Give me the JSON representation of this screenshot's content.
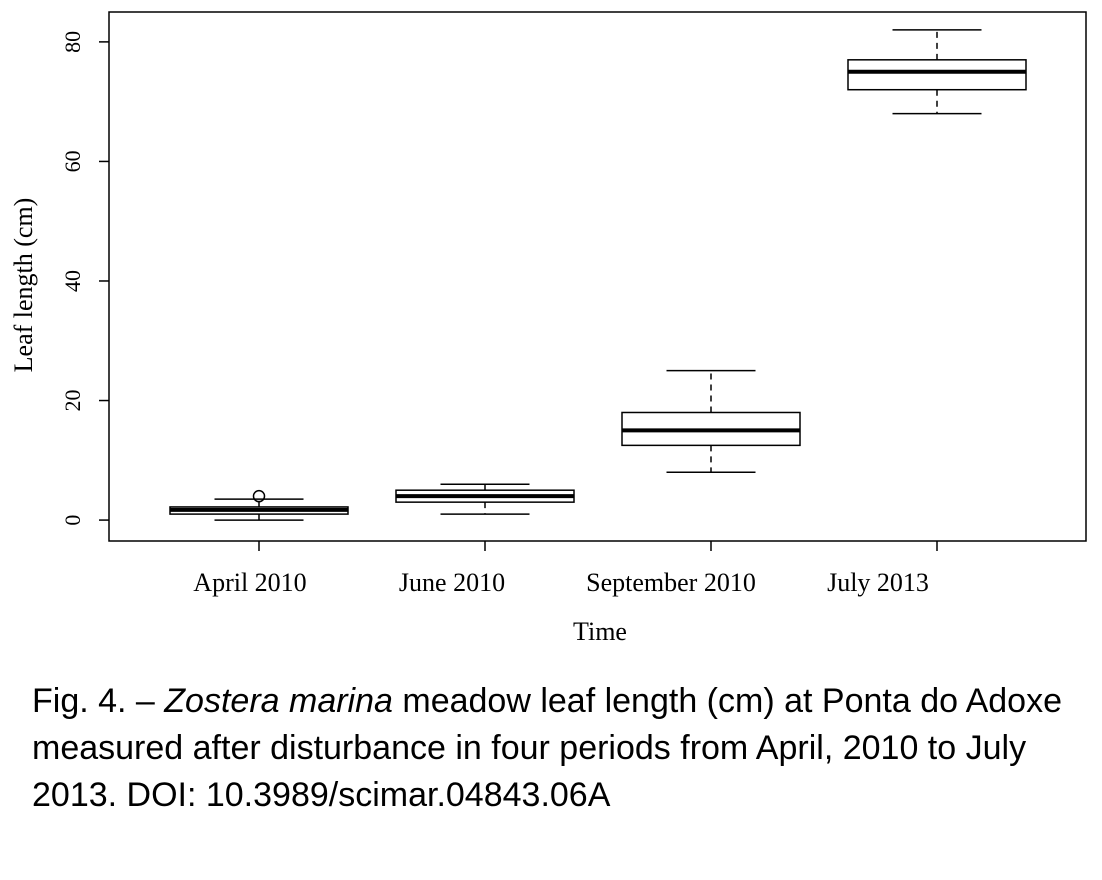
{
  "chart_data": {
    "type": "box",
    "xlabel": "Time",
    "ylabel": "Leaf length (cm)",
    "ylim": [
      -3.5,
      85
    ],
    "yticks": [
      0,
      20,
      40,
      60,
      80
    ],
    "grid": false,
    "categories": [
      "April 2010",
      "June 2010",
      "September 2010",
      "July 2013"
    ],
    "boxes": [
      {
        "category": "April 2010",
        "whisker_low": 0,
        "q1": 1,
        "median": 1.7,
        "q3": 2.2,
        "whisker_high": 3.5,
        "outliers": [
          4
        ]
      },
      {
        "category": "June 2010",
        "whisker_low": 1,
        "q1": 3,
        "median": 4,
        "q3": 5,
        "whisker_high": 6,
        "outliers": []
      },
      {
        "category": "September 2010",
        "whisker_low": 8,
        "q1": 12.5,
        "median": 15,
        "q3": 18,
        "whisker_high": 25,
        "outliers": []
      },
      {
        "category": "July 2013",
        "whisker_low": 68,
        "q1": 72,
        "median": 75,
        "q3": 77,
        "whisker_high": 82,
        "outliers": []
      }
    ]
  },
  "caption": {
    "prefix": "Fig. 4. – ",
    "species": "Zostera marina",
    "text": " meadow leaf length (cm) at Ponta do Adoxe measured after disturbance in four periods from April, 2010 to July 2013. DOI: 10.3989/scimar.04843.06A"
  }
}
